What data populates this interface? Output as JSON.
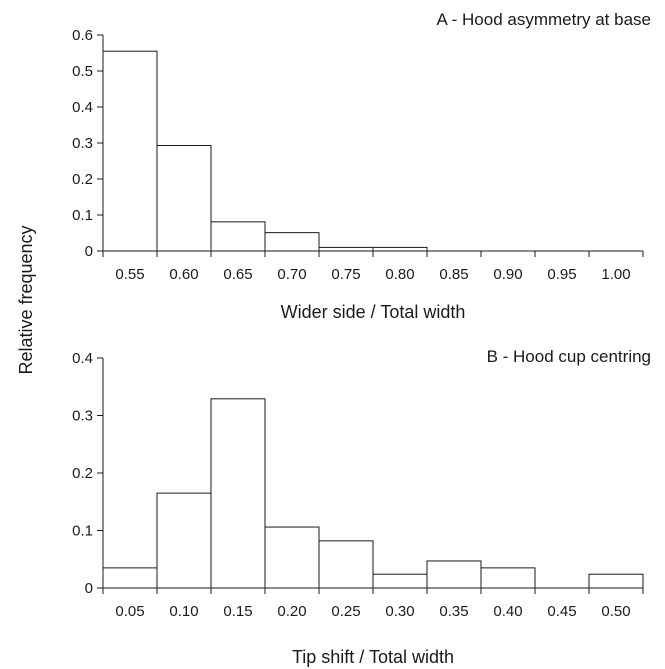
{
  "figure": {
    "ylabel": "Relative frequency"
  },
  "chart_data": [
    {
      "type": "bar",
      "title": "A - Hood asymmetry at base",
      "xlabel": "Wider side / Total width",
      "ylabel": "Relative frequency",
      "categories": [
        "0.55",
        "0.60",
        "0.65",
        "0.70",
        "0.75",
        "0.80",
        "0.85",
        "0.90",
        "0.95",
        "1.00"
      ],
      "values": [
        0.555,
        0.293,
        0.081,
        0.051,
        0.01,
        0.01,
        0,
        0,
        0,
        0
      ],
      "yticks": [
        "0",
        "0.1",
        "0.2",
        "0.3",
        "0.4",
        "0.5",
        "0.6"
      ],
      "ylim": [
        0,
        0.6
      ],
      "grid": false
    },
    {
      "type": "bar",
      "title": "B - Hood cup centring",
      "xlabel": "Tip shift / Total width",
      "ylabel": "Relative frequency",
      "categories": [
        "0.05",
        "0.10",
        "0.15",
        "0.20",
        "0.25",
        "0.30",
        "0.35",
        "0.40",
        "0.45",
        "0.50"
      ],
      "values": [
        0.035,
        0.165,
        0.329,
        0.106,
        0.082,
        0.024,
        0.047,
        0.035,
        0,
        0.024
      ],
      "yticks": [
        "0",
        "0.1",
        "0.2",
        "0.3",
        "0.4"
      ],
      "ylim": [
        0,
        0.4
      ],
      "grid": false
    }
  ]
}
